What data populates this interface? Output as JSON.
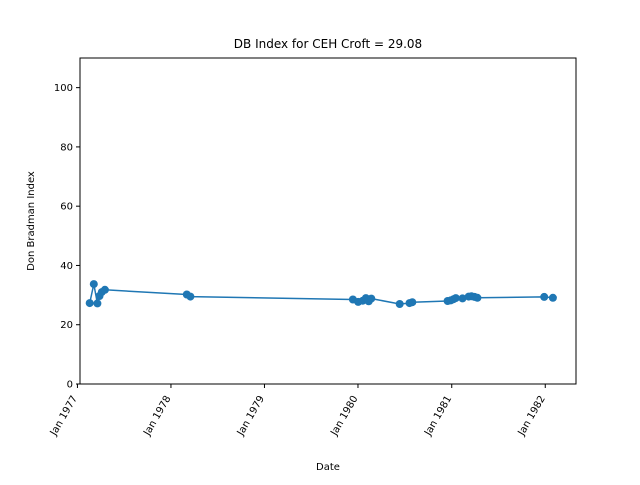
{
  "chart_data": {
    "type": "line",
    "title": "DB Index for CEH Croft = 29.08",
    "xlabel": "Date",
    "ylabel": "Don Bradman Index",
    "ylim": [
      0,
      110
    ],
    "xlim": [
      "1977-01-11",
      "1982-05-01"
    ],
    "grid": false,
    "legend": "none",
    "line_color": "#1f77b4",
    "xticks": [
      {
        "date": "1977-01-01",
        "label": "Jan 1977"
      },
      {
        "date": "1978-01-01",
        "label": "Jan 1978"
      },
      {
        "date": "1979-01-01",
        "label": "Jan 1979"
      },
      {
        "date": "1980-01-01",
        "label": "Jan 1980"
      },
      {
        "date": "1981-01-01",
        "label": "Jan 1981"
      },
      {
        "date": "1982-01-01",
        "label": "Jan 1982"
      }
    ],
    "yticks": [
      0,
      20,
      40,
      60,
      80,
      100
    ],
    "series": [
      {
        "x": [
          "1977-02-18",
          "1977-03-06",
          "1977-03-20",
          "1977-03-28",
          "1977-04-06",
          "1977-04-18",
          "1978-03-04",
          "1978-03-18",
          "1979-12-12",
          "1980-01-02",
          "1980-01-20",
          "1980-02-01",
          "1980-02-12",
          "1980-02-22",
          "1980-06-12",
          "1980-07-20",
          "1980-07-31",
          "1980-12-16",
          "1980-12-28",
          "1981-01-08",
          "1981-01-17",
          "1981-02-12",
          "1981-03-08",
          "1981-03-19",
          "1981-03-31",
          "1981-04-11",
          "1981-12-28",
          "1982-01-31"
        ],
        "y": [
          27.3,
          33.7,
          27.2,
          29.7,
          31.0,
          31.8,
          30.2,
          29.5,
          28.5,
          27.7,
          28.1,
          29.0,
          27.9,
          28.8,
          27.0,
          27.3,
          27.6,
          28.0,
          28.2,
          28.6,
          29.0,
          28.9,
          29.5,
          29.6,
          29.4,
          29.1,
          29.4,
          29.1
        ]
      }
    ]
  }
}
